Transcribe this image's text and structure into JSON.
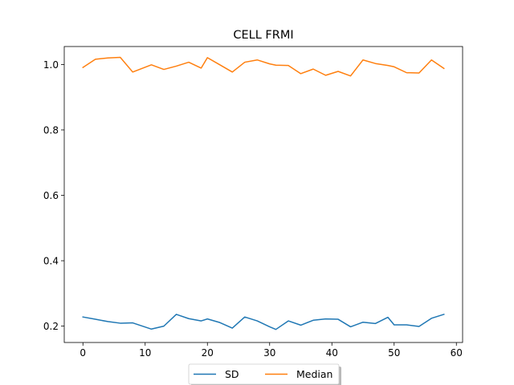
{
  "chart_data": {
    "type": "line",
    "title": "CELL FRMI",
    "xlabel": "",
    "ylabel": "",
    "xlim": [
      -3,
      61
    ],
    "ylim": [
      0.15,
      1.055
    ],
    "xticks": [
      0,
      10,
      20,
      30,
      40,
      50,
      60
    ],
    "xtick_labels": [
      "0",
      "10",
      "20",
      "30",
      "40",
      "50",
      "60"
    ],
    "yticks": [
      0.2,
      0.4,
      0.6,
      0.8,
      1.0
    ],
    "ytick_labels": [
      "0.2",
      "0.4",
      "0.6",
      "0.8",
      "1.0"
    ],
    "grid": false,
    "legend": {
      "placement": "bottom-center",
      "columns": 2
    },
    "x": [
      0,
      2,
      4,
      6,
      8,
      11,
      13,
      15,
      17,
      19,
      20,
      22,
      24,
      26,
      28,
      30,
      31,
      33,
      35,
      37,
      39,
      41,
      43,
      45,
      47,
      49,
      50,
      52,
      54,
      56,
      58
    ],
    "series": [
      {
        "name": "SD",
        "color": "#1f77b4",
        "values": [
          0.228,
          0.221,
          0.214,
          0.209,
          0.21,
          0.191,
          0.2,
          0.236,
          0.223,
          0.216,
          0.222,
          0.211,
          0.194,
          0.228,
          0.216,
          0.198,
          0.19,
          0.216,
          0.203,
          0.218,
          0.222,
          0.221,
          0.198,
          0.212,
          0.208,
          0.227,
          0.204,
          0.204,
          0.199,
          0.224,
          0.236
        ]
      },
      {
        "name": "Median",
        "color": "#ff7f0e",
        "values": [
          0.991,
          1.016,
          1.02,
          1.022,
          0.977,
          0.999,
          0.985,
          0.995,
          1.007,
          0.989,
          1.021,
          0.999,
          0.977,
          1.007,
          1.014,
          1.002,
          0.998,
          0.997,
          0.972,
          0.986,
          0.967,
          0.979,
          0.965,
          1.014,
          1.003,
          0.997,
          0.993,
          0.975,
          0.974,
          1.014,
          0.988
        ]
      }
    ]
  }
}
